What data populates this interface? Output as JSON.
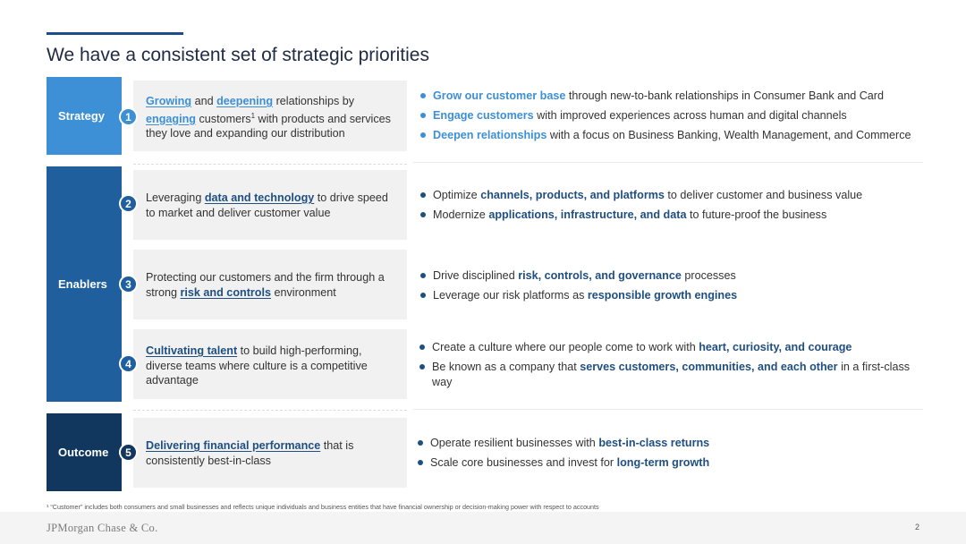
{
  "title": "We have a consistent set of strategic priorities",
  "sections": {
    "strategy": "Strategy",
    "enablers": "Enablers",
    "outcome": "Outcome"
  },
  "badges": [
    "1",
    "2",
    "3",
    "4",
    "5"
  ],
  "priorities": [
    {
      "k1": "Growing",
      "t1": " and ",
      "k2": "deepening",
      "t2": " relationships by ",
      "k3": "engaging",
      "t3": " customers",
      "sup": "1",
      "t4": " with products and services they love and expanding our distribution"
    },
    {
      "t1": "Leveraging ",
      "k1": "data and technology",
      "t2": " to drive speed to market and deliver customer value"
    },
    {
      "t1": "Protecting our customers and the firm through a strong ",
      "k1": "risk and controls",
      "t2": " environment"
    },
    {
      "k1": "Cultivating talent",
      "t1": " to build high-performing, diverse teams where culture is a competitive advantage"
    },
    {
      "k1": "Delivering financial performance",
      "t1": " that is consistently best-in-class"
    }
  ],
  "bullets": {
    "strategy": [
      {
        "k": "Grow our customer base",
        "t": " through new-to-bank relationships in Consumer Bank and Card"
      },
      {
        "k": "Engage customers",
        "t": " with improved experiences across human and digital channels"
      },
      {
        "k": "Deepen relationships",
        "t": " with a focus on Business Banking, Wealth Management, and Commerce"
      }
    ],
    "data_tech": [
      {
        "a": "Optimize ",
        "k": "channels, products, and platforms",
        "b": " to deliver customer and business value"
      },
      {
        "a": "Modernize ",
        "k": "applications, infrastructure, and data",
        "b": " to future-proof the business"
      }
    ],
    "risk": [
      {
        "a": "Drive disciplined ",
        "k": "risk, controls, and governance",
        "b": " processes"
      },
      {
        "a": "Leverage our risk platforms as ",
        "k": "responsible growth engines",
        "b": ""
      }
    ],
    "talent": [
      {
        "a": "Create a culture where our people come to work with ",
        "k": "heart, curiosity, and courage",
        "b": ""
      },
      {
        "a": "Be known as a company that ",
        "k": "serves customers, communities, and each other",
        "b": " in a first-class way"
      }
    ],
    "financial": [
      {
        "a": "Operate resilient businesses with ",
        "k": "best-in-class returns",
        "b": ""
      },
      {
        "a": "Scale core businesses and invest for ",
        "k": "long-term growth",
        "b": ""
      }
    ]
  },
  "footnote": "¹ “Customer” includes both consumers and small businesses and reflects unique individuals and business entities that have financial ownership or decision-making power with respect to accounts",
  "footer": {
    "logo": "JPMorgan Chase & Co.",
    "page": "2"
  },
  "colors": {
    "strategy": "#3d8fd6",
    "enablers": "#1f5f9e",
    "outcome": "#12375f",
    "accent_dark": "#1f4f80"
  }
}
